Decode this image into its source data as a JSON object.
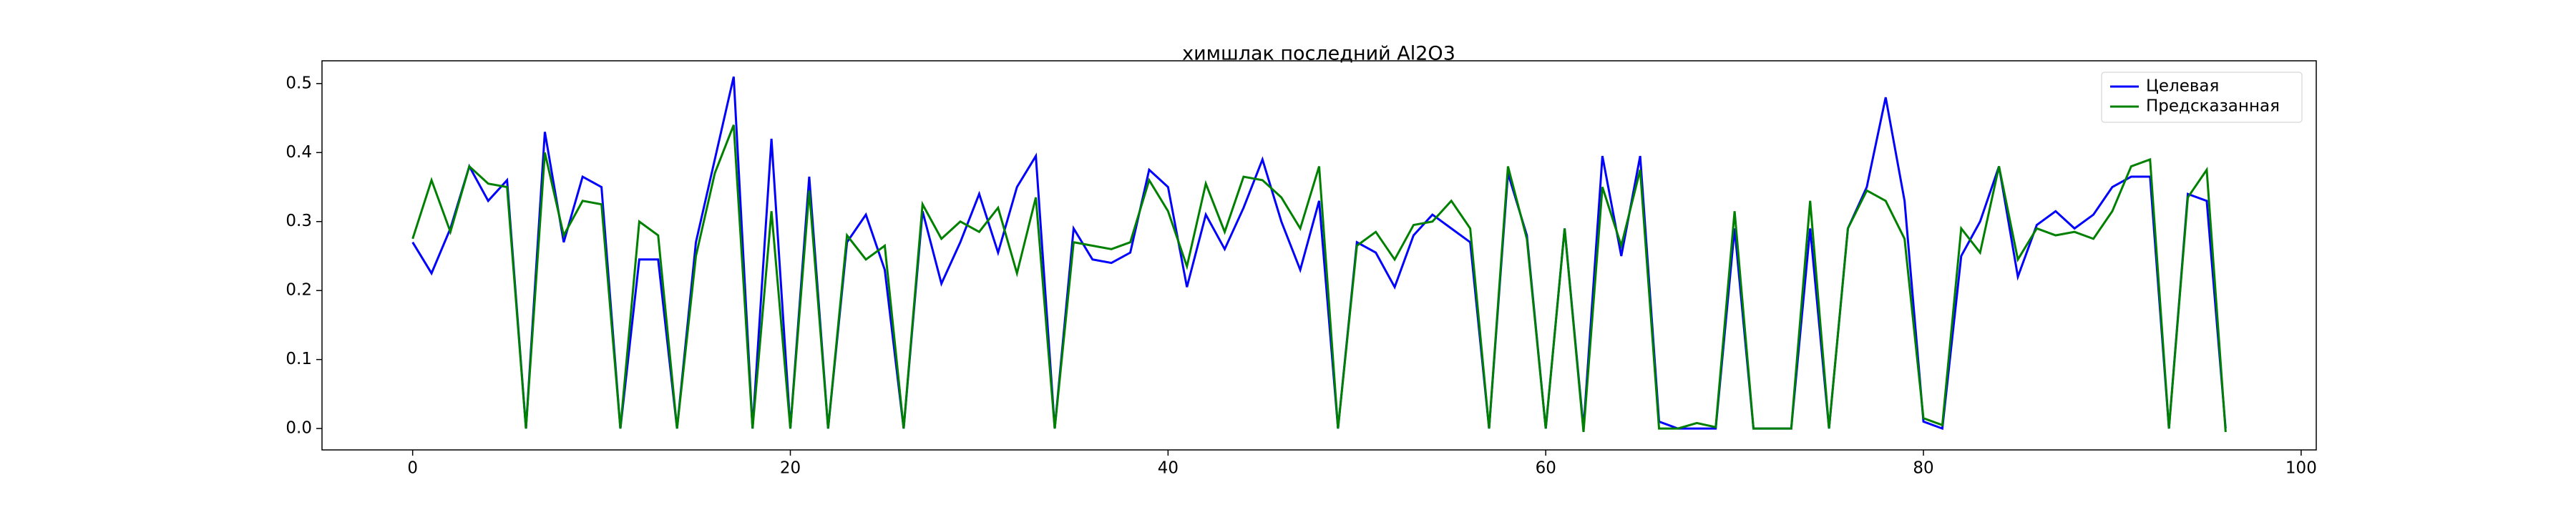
{
  "chart_data": {
    "type": "line",
    "title": "химшлак последний Al2O3",
    "x": [
      0,
      1,
      2,
      3,
      4,
      5,
      6,
      7,
      8,
      9,
      10,
      11,
      12,
      13,
      14,
      15,
      16,
      17,
      18,
      19,
      20,
      21,
      22,
      23,
      24,
      25,
      26,
      27,
      28,
      29,
      30,
      31,
      32,
      33,
      34,
      35,
      36,
      37,
      38,
      39,
      40,
      41,
      42,
      43,
      44,
      45,
      46,
      47,
      48,
      49,
      50,
      51,
      52,
      53,
      54,
      55,
      56,
      57,
      58,
      59,
      60,
      61,
      62,
      63,
      64,
      65,
      66,
      67,
      68,
      69,
      70,
      71,
      72,
      73,
      74,
      75,
      76,
      77,
      78,
      79,
      80,
      81,
      82,
      83,
      84,
      85,
      86,
      87,
      88,
      89,
      90,
      91,
      92,
      93,
      94,
      95,
      96
    ],
    "series": [
      {
        "name": "Целевая",
        "color": "#0000ff",
        "values": [
          0.27,
          0.225,
          0.29,
          0.38,
          0.33,
          0.36,
          0.0,
          0.43,
          0.27,
          0.365,
          0.35,
          0.0,
          0.245,
          0.245,
          0.0,
          0.27,
          0.39,
          0.51,
          0.0,
          0.42,
          0.0,
          0.365,
          0.0,
          0.27,
          0.31,
          0.23,
          0.0,
          0.315,
          0.21,
          0.27,
          0.34,
          0.255,
          0.35,
          0.395,
          0.0,
          0.29,
          0.245,
          0.24,
          0.255,
          0.375,
          0.35,
          0.205,
          0.31,
          0.26,
          0.32,
          0.39,
          0.3,
          0.23,
          0.33,
          0.0,
          0.27,
          0.255,
          0.205,
          0.28,
          0.31,
          0.29,
          0.27,
          0.0,
          0.37,
          0.28,
          0.0,
          0.29,
          0.0,
          0.395,
          0.25,
          0.395,
          0.01,
          0.0,
          0.0,
          0.0,
          0.29,
          0.0,
          0.0,
          0.0,
          0.29,
          0.0,
          0.29,
          0.35,
          0.48,
          0.33,
          0.01,
          0.0,
          0.25,
          0.3,
          0.38,
          0.22,
          0.295,
          0.315,
          0.29,
          0.31,
          0.35,
          0.365,
          0.365,
          0.0,
          0.34,
          0.33,
          0.0
        ]
      },
      {
        "name": "Предсказанная",
        "color": "#008000",
        "values": [
          0.275,
          0.36,
          0.285,
          0.38,
          0.355,
          0.35,
          0.0,
          0.4,
          0.28,
          0.33,
          0.325,
          0.0,
          0.3,
          0.28,
          0.0,
          0.25,
          0.37,
          0.44,
          0.0,
          0.315,
          0.0,
          0.345,
          0.0,
          0.28,
          0.245,
          0.265,
          0.0,
          0.325,
          0.275,
          0.3,
          0.285,
          0.32,
          0.225,
          0.335,
          0.0,
          0.27,
          0.265,
          0.26,
          0.27,
          0.36,
          0.315,
          0.235,
          0.355,
          0.285,
          0.365,
          0.36,
          0.335,
          0.29,
          0.38,
          0.0,
          0.265,
          0.285,
          0.245,
          0.295,
          0.3,
          0.33,
          0.29,
          0.0,
          0.38,
          0.275,
          0.0,
          0.29,
          -0.005,
          0.35,
          0.265,
          0.375,
          0.0,
          0.0,
          0.008,
          0.002,
          0.315,
          0.0,
          0.0,
          0.0,
          0.33,
          0.0,
          0.29,
          0.345,
          0.33,
          0.275,
          0.015,
          0.005,
          0.29,
          0.255,
          0.38,
          0.245,
          0.29,
          0.28,
          0.285,
          0.275,
          0.315,
          0.38,
          0.39,
          0.0,
          0.335,
          0.375,
          -0.005
        ]
      }
    ],
    "xlim": [
      -4.8,
      100.8
    ],
    "xticks": [
      0,
      20,
      40,
      60,
      80,
      100
    ],
    "ylim": [
      -0.031,
      0.533
    ],
    "yticks": [
      {
        "value": 0,
        "label": "0.0"
      },
      0.1,
      0.2,
      0.3,
      0.4,
      0.5
    ],
    "legend": "upper right"
  }
}
